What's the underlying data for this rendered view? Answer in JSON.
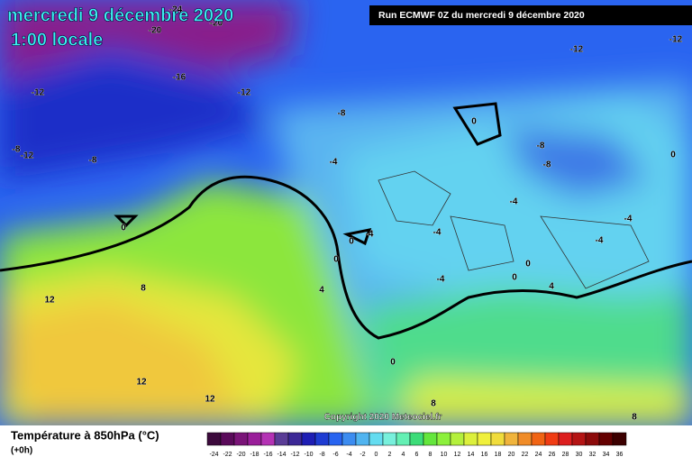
{
  "header": {
    "title": "mercredi 9 décembre 2020",
    "subtitle": "1:00 locale",
    "run": "Run ECMWF 0Z du mercredi 9 décembre 2020"
  },
  "map": {
    "contour_labels": [
      -24,
      -20,
      -20,
      -12,
      -12,
      -16,
      -12,
      -12,
      -8,
      0,
      -8,
      -12,
      -8,
      -8,
      -8,
      0,
      -4,
      -4,
      0,
      -4,
      -4,
      -4,
      -4,
      0,
      0,
      0,
      0,
      -4,
      4,
      12,
      8,
      4,
      0,
      12,
      12,
      8,
      8
    ],
    "copyright": "Copyright 2020 Meteociel.fr"
  },
  "legend": {
    "title": "Température à 850hPa (°C)",
    "subtitle": "(+0h)",
    "ticks": [
      -24,
      -22,
      -20,
      -18,
      -16,
      -14,
      -12,
      -10,
      -8,
      -6,
      -4,
      -2,
      0,
      2,
      4,
      6,
      8,
      10,
      12,
      14,
      16,
      18,
      20,
      22,
      24,
      26,
      28,
      30,
      32,
      34,
      36
    ],
    "colors": [
      "#3c0a3c",
      "#5a0a5a",
      "#7a1478",
      "#9a1e9a",
      "#b432b4",
      "#5a3c96",
      "#3c2896",
      "#1e1eb4",
      "#1e3cd2",
      "#2864f0",
      "#3c8cf0",
      "#50b4f0",
      "#64dcf0",
      "#78f0dc",
      "#64f0b4",
      "#3cdc78",
      "#64e63c",
      "#8cf03c",
      "#b4f03c",
      "#dcf03c",
      "#f0f03c",
      "#f0dc3c",
      "#f0b43c",
      "#f08c28",
      "#f06414",
      "#f03c14",
      "#dc1e1e",
      "#b41414",
      "#8c0a0a",
      "#640000",
      "#3c0000"
    ]
  }
}
